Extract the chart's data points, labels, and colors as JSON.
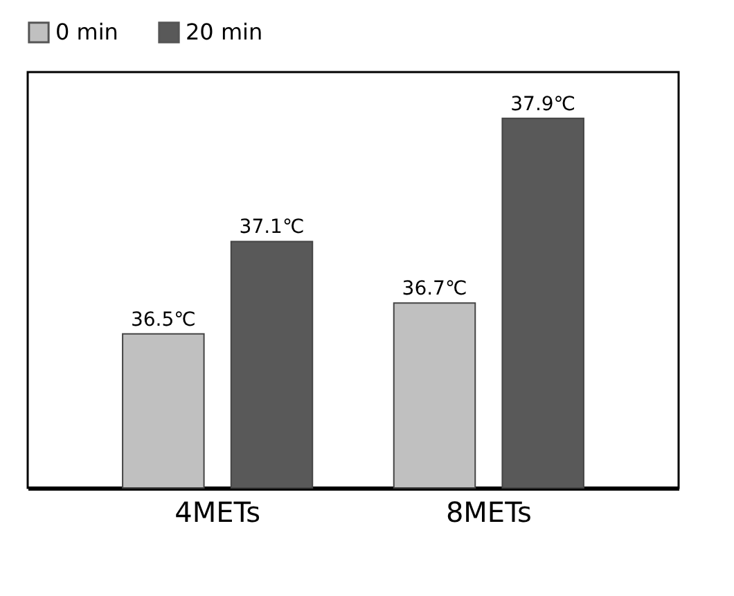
{
  "chart_data": {
    "type": "bar",
    "categories": [
      "4METs",
      "8METs"
    ],
    "series": [
      {
        "name": "0 min",
        "color": "#c0c0c0",
        "values": [
          36.5,
          36.7
        ],
        "value_labels": [
          "36.5℃",
          "36.7℃"
        ]
      },
      {
        "name": "20 min",
        "color": "#595959",
        "values": [
          37.1,
          37.9
        ],
        "value_labels": [
          "37.1℃",
          "37.9℃"
        ]
      }
    ],
    "ylim": [
      35.5,
      38.2
    ],
    "legend": "top",
    "grid": false
  }
}
